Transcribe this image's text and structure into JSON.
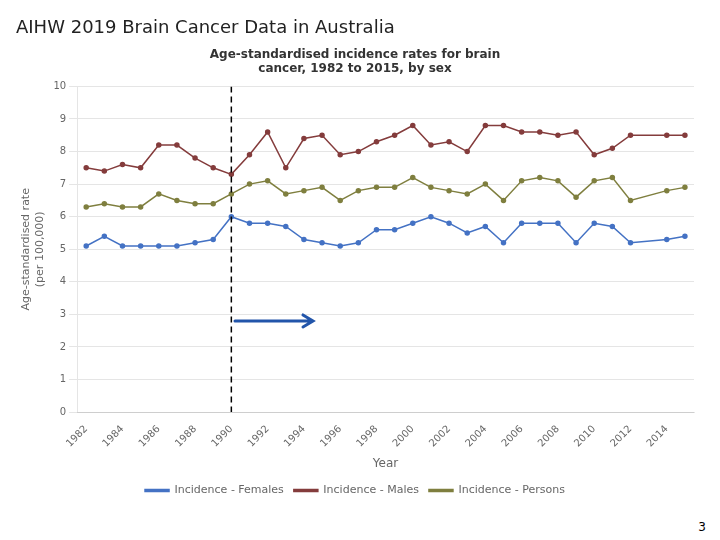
{
  "chart_data": {
    "type": "line",
    "title": "AIHW 2019 Brain Cancer Data in Australia",
    "subtitle": "Age-standardised incidence rates for brain\ncancer, 1982 to 2015, by sex",
    "page_number": "3",
    "x_label": "Year",
    "y_label": "Age-standardised rate\n(per 100,000)",
    "x": [
      1982,
      1983,
      1984,
      1985,
      1986,
      1987,
      1988,
      1989,
      1990,
      1991,
      1992,
      1993,
      1994,
      1995,
      1996,
      1997,
      1998,
      1999,
      2000,
      2001,
      2002,
      2003,
      2004,
      2005,
      2006,
      2007,
      2008,
      2009,
      2010,
      2011,
      2012,
      2014,
      2015
    ],
    "series": [
      {
        "name": "Incidence - Females",
        "color": "#4472C4",
        "values": [
          5.1,
          5.4,
          5.1,
          5.1,
          5.1,
          5.1,
          5.2,
          5.3,
          6.0,
          5.8,
          5.8,
          5.7,
          5.3,
          5.2,
          5.1,
          5.2,
          5.6,
          5.6,
          5.8,
          6.0,
          5.8,
          5.5,
          5.7,
          5.2,
          5.8,
          5.8,
          5.8,
          5.2,
          5.8,
          5.7,
          5.2,
          5.3,
          5.4
        ]
      },
      {
        "name": "Incidence - Males",
        "color": "#843C3C",
        "values": [
          7.5,
          7.4,
          7.6,
          7.5,
          8.2,
          8.2,
          7.8,
          7.5,
          7.3,
          7.9,
          8.6,
          7.5,
          8.4,
          8.5,
          7.9,
          8.0,
          8.3,
          8.5,
          8.8,
          8.2,
          8.3,
          8.0,
          8.8,
          8.8,
          8.6,
          8.6,
          8.5,
          8.6,
          7.9,
          8.1,
          8.5,
          8.5,
          8.5
        ]
      },
      {
        "name": "Incidence - Persons",
        "color": "#7F7F3F",
        "values": [
          6.3,
          6.4,
          6.3,
          6.3,
          6.7,
          6.5,
          6.4,
          6.4,
          6.7,
          7.0,
          7.1,
          6.7,
          6.8,
          6.9,
          6.5,
          6.8,
          6.9,
          6.9,
          7.2,
          6.9,
          6.8,
          6.7,
          7.0,
          6.5,
          7.1,
          7.2,
          7.1,
          6.6,
          7.1,
          7.2,
          6.5,
          6.8,
          6.9
        ]
      }
    ],
    "marker": "circle",
    "xlim": [
      1981.5,
      2015.5
    ],
    "xticks": [
      1982,
      1984,
      1986,
      1988,
      1990,
      1992,
      1994,
      1996,
      1998,
      2000,
      2002,
      2004,
      2006,
      2008,
      2010,
      2012,
      2014
    ],
    "ylim": [
      0,
      10
    ],
    "yticks": [
      0,
      1,
      2,
      3,
      4,
      5,
      6,
      7,
      8,
      9,
      10
    ],
    "grid": "y",
    "legend": "bottom",
    "vertical_line": {
      "x": 1990,
      "color": "#000000",
      "line_style": "dashed"
    },
    "arrow": {
      "x_start": 1990.2,
      "x_end": 1994.5,
      "y": 2.8,
      "color": "#2255AA"
    }
  }
}
